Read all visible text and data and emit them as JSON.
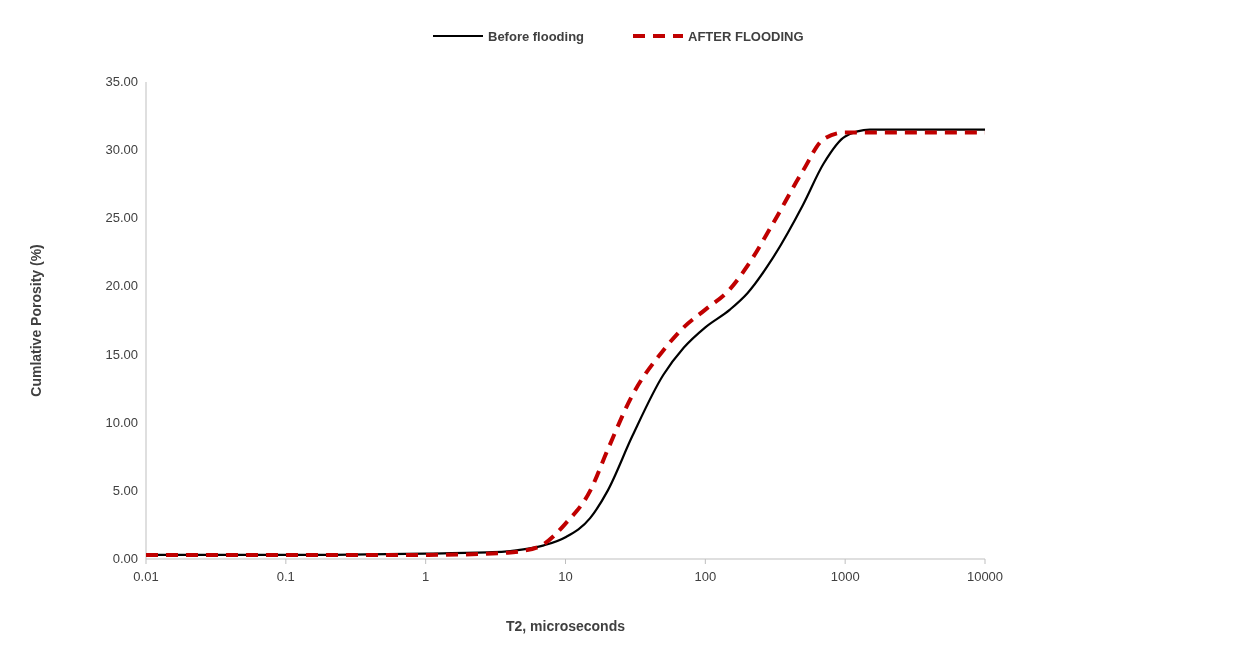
{
  "chart_data": {
    "type": "line",
    "xlabel": "T2, microseconds",
    "ylabel": "Cumlative Porosity (%)",
    "log": "x",
    "legend": "top",
    "grid": false,
    "marker": "none",
    "xlim": [
      0.01,
      10000
    ],
    "xticks": [
      0.01,
      0.1,
      1,
      10,
      100,
      1000,
      10000
    ],
    "ylim": [
      0,
      35
    ],
    "yticks": [
      {
        "value": 0,
        "label": "0.00"
      },
      {
        "value": 5,
        "label": "5.00"
      },
      {
        "value": 10,
        "label": "10.00"
      },
      {
        "value": 15,
        "label": "15.00"
      },
      {
        "value": 20,
        "label": "20.00"
      },
      {
        "value": 25,
        "label": "25.00"
      },
      {
        "value": 30,
        "label": "30.00"
      },
      {
        "value": 35,
        "label": "35.00"
      }
    ],
    "series": [
      {
        "name": "Before flooding",
        "color": "#000000",
        "line_style": "solid",
        "x": [
          0.01,
          0.1,
          1,
          3,
          5,
          7,
          10,
          15,
          20,
          30,
          50,
          70,
          100,
          150,
          200,
          300,
          500,
          700,
          1000,
          1500,
          3000,
          10000
        ],
        "values": [
          0.3,
          0.3,
          0.4,
          0.5,
          0.7,
          1.0,
          1.6,
          3,
          5,
          9,
          13.5,
          15.5,
          17,
          18.3,
          19.5,
          22,
          26,
          29,
          31,
          31.5,
          31.5,
          31.5
        ]
      },
      {
        "name": "AFTER FLOODING",
        "color": "#c00000",
        "line_style": "dashed",
        "x": [
          0.01,
          0.1,
          1,
          3,
          5,
          7,
          10,
          15,
          20,
          30,
          50,
          70,
          100,
          150,
          200,
          300,
          500,
          700,
          1000,
          3000,
          10000
        ],
        "values": [
          0.3,
          0.3,
          0.3,
          0.4,
          0.6,
          1.1,
          2.6,
          5,
          8,
          12,
          15.3,
          17,
          18.3,
          19.8,
          21.5,
          24.5,
          28.5,
          30.8,
          31.3,
          31.3,
          31.3
        ]
      }
    ]
  }
}
